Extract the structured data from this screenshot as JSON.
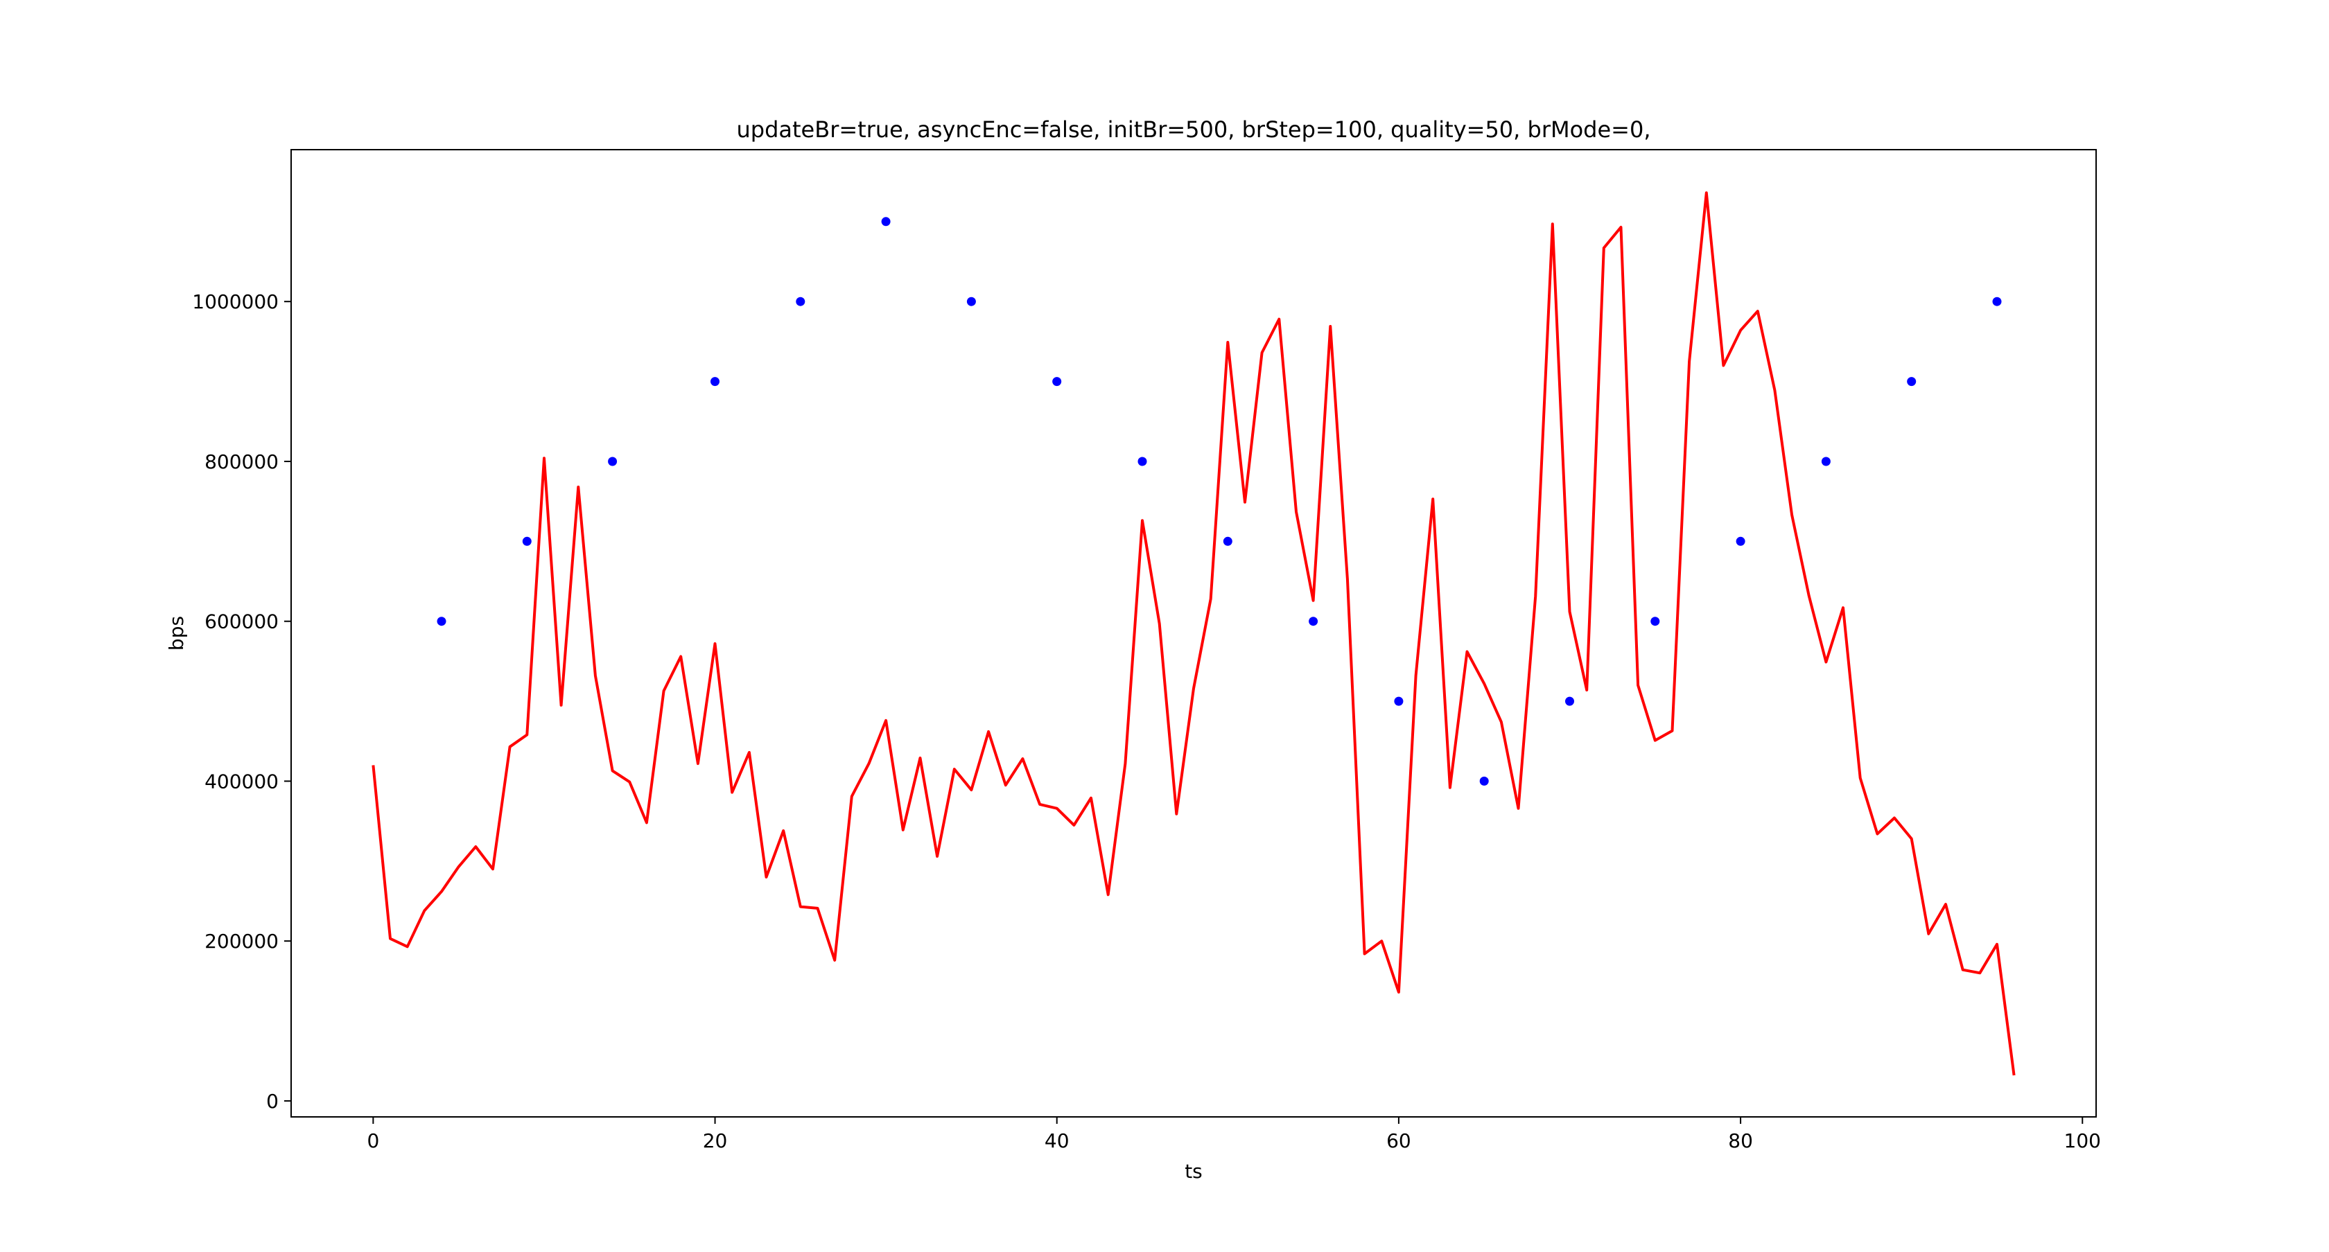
{
  "chart_data": {
    "type": "line",
    "title": "updateBr=true, asyncEnc=false, initBr=500, brStep=100, quality=50, brMode=0,",
    "xlabel": "ts",
    "ylabel": "bps",
    "xlim": [
      -4.8,
      100.8
    ],
    "ylim": [
      -20000,
      1190000
    ],
    "xticks": [
      0,
      20,
      40,
      60,
      80,
      100
    ],
    "xtick_labels": [
      "0",
      "20",
      "40",
      "60",
      "80",
      "100"
    ],
    "yticks": [
      0,
      200000,
      400000,
      600000,
      800000,
      1000000
    ],
    "ytick_labels": [
      "0",
      "200000",
      "400000",
      "600000",
      "800000",
      "1000000"
    ],
    "grid": false,
    "legend": "none",
    "series": [
      {
        "type": "line",
        "color": "#ff0000",
        "x": [
          0,
          1,
          2,
          3,
          4,
          5,
          6,
          7,
          8,
          9,
          10,
          11,
          12,
          13,
          14,
          15,
          16,
          17,
          18,
          19,
          20,
          21,
          22,
          23,
          24,
          25,
          26,
          27,
          28,
          29,
          30,
          31,
          32,
          33,
          34,
          35,
          36,
          37,
          38,
          39,
          40,
          41,
          42,
          43,
          44,
          45,
          46,
          47,
          48,
          49,
          50,
          51,
          52,
          53,
          54,
          55,
          56,
          57,
          58,
          59,
          60,
          61,
          62,
          63,
          64,
          65,
          66,
          67,
          68,
          69,
          70,
          71,
          72,
          73,
          74,
          75,
          76,
          77,
          78,
          79,
          80,
          81,
          82,
          83,
          84,
          85,
          86,
          87,
          88,
          89,
          90,
          91,
          92,
          93,
          94,
          95,
          96
        ],
        "values": [
          420000,
          203000,
          193000,
          238000,
          262000,
          293000,
          318000,
          290000,
          443000,
          458000,
          804000,
          495000,
          768000,
          532000,
          413000,
          399000,
          348000,
          513000,
          556000,
          422000,
          572000,
          386000,
          436000,
          280000,
          338000,
          243000,
          241000,
          176000,
          381000,
          422000,
          476000,
          339000,
          429000,
          306000,
          415000,
          389000,
          462000,
          395000,
          428000,
          371000,
          366000,
          345000,
          379000,
          258000,
          422000,
          726000,
          597000,
          359000,
          516000,
          628000,
          949000,
          749000,
          936000,
          978000,
          737000,
          626000,
          969000,
          653000,
          184000,
          200000,
          136000,
          532000,
          753000,
          392000,
          562000,
          522000,
          474000,
          366000,
          631000,
          1097000,
          612000,
          514000,
          1067000,
          1093000,
          520000,
          451000,
          463000,
          925000,
          1136000,
          920000,
          964000,
          988000,
          889000,
          733000,
          632000,
          549000,
          617000,
          404000,
          334000,
          354000,
          328000,
          209000,
          246000,
          164000,
          160000,
          196000,
          32000
        ]
      },
      {
        "type": "scatter",
        "color": "#0000ff",
        "x": [
          4,
          9,
          14,
          20,
          25,
          30,
          35,
          40,
          45,
          50,
          55,
          60,
          65,
          70,
          75,
          80,
          85,
          90,
          95
        ],
        "values": [
          600000,
          700000,
          800000,
          900000,
          1000000,
          1100000,
          1000000,
          900000,
          800000,
          700000,
          600000,
          500000,
          400000,
          500000,
          600000,
          700000,
          800000,
          900000,
          1000000
        ]
      }
    ]
  }
}
